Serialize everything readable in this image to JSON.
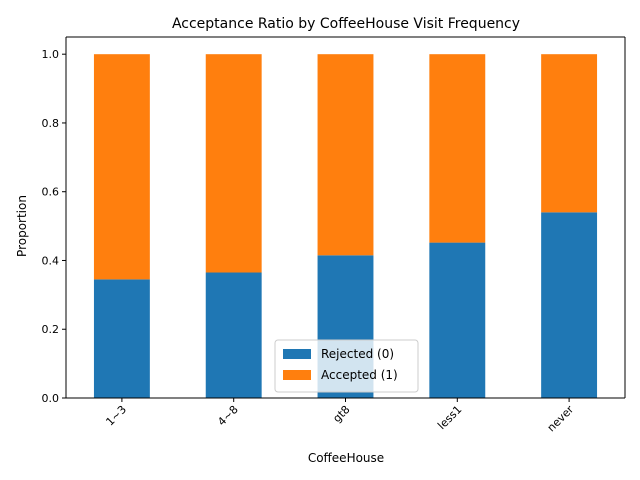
{
  "chart_data": {
    "type": "bar",
    "stacked": true,
    "title": "Acceptance Ratio by CoffeeHouse Visit Frequency",
    "xlabel": "CoffeeHouse",
    "ylabel": "Proportion",
    "categories": [
      "1~3",
      "4~8",
      "gt8",
      "less1",
      "never"
    ],
    "series": [
      {
        "name": "Rejected (0)",
        "values": [
          0.345,
          0.365,
          0.415,
          0.452,
          0.54
        ],
        "color": "#1f77b4"
      },
      {
        "name": "Accepted (1)",
        "values": [
          0.655,
          0.635,
          0.585,
          0.548,
          0.46
        ],
        "color": "#ff7f0e"
      }
    ],
    "ylim": [
      0,
      1.05
    ],
    "yticks": [
      "0.0",
      "0.2",
      "0.4",
      "0.6",
      "0.8",
      "1.0"
    ],
    "grid": false,
    "legend_position": "lower-center",
    "xtick_rotation": "45 degrees"
  }
}
